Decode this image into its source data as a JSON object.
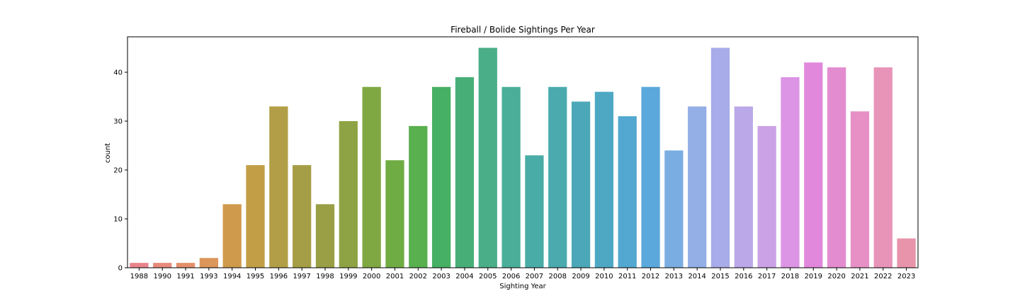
{
  "chart_data": {
    "type": "bar",
    "title": "Fireball / Bolide Sightings Per Year",
    "xlabel": "Sighting Year",
    "ylabel": "count",
    "ylim": [
      0,
      47.25
    ],
    "yticks": [
      0,
      10,
      20,
      30,
      40
    ],
    "grid": false,
    "categories": [
      "1988",
      "1990",
      "1991",
      "1993",
      "1994",
      "1995",
      "1996",
      "1997",
      "1998",
      "1999",
      "2000",
      "2001",
      "2002",
      "2003",
      "2004",
      "2005",
      "2006",
      "2007",
      "2008",
      "2009",
      "2010",
      "2011",
      "2012",
      "2013",
      "2014",
      "2015",
      "2016",
      "2017",
      "2018",
      "2019",
      "2020",
      "2021",
      "2022",
      "2023"
    ],
    "values": [
      1,
      1,
      1,
      2,
      13,
      21,
      33,
      21,
      13,
      30,
      37,
      22,
      29,
      37,
      39,
      45,
      37,
      23,
      37,
      34,
      36,
      31,
      37,
      24,
      33,
      45,
      33,
      29,
      39,
      42,
      41,
      32,
      41,
      6
    ],
    "colors": [
      "#e8848c",
      "#e88a7c",
      "#e4906a",
      "#dc965a",
      "#d09a4c",
      "#c29e46",
      "#b29e46",
      "#a69e46",
      "#9a9e44",
      "#8ea444",
      "#80a842",
      "#70ac44",
      "#58b04e",
      "#46b064",
      "#48ae78",
      "#4aae88",
      "#4aae98",
      "#4aaca6",
      "#4aaaae",
      "#4ca8b8",
      "#4ea8c4",
      "#52a8d0",
      "#5aa8dc",
      "#7aaee2",
      "#94aee6",
      "#a8ace8",
      "#baa8e8",
      "#cca2e6",
      "#dc94e4",
      "#e288dc",
      "#e48cd0",
      "#e690c6",
      "#e894b8",
      "#e894aa"
    ]
  }
}
